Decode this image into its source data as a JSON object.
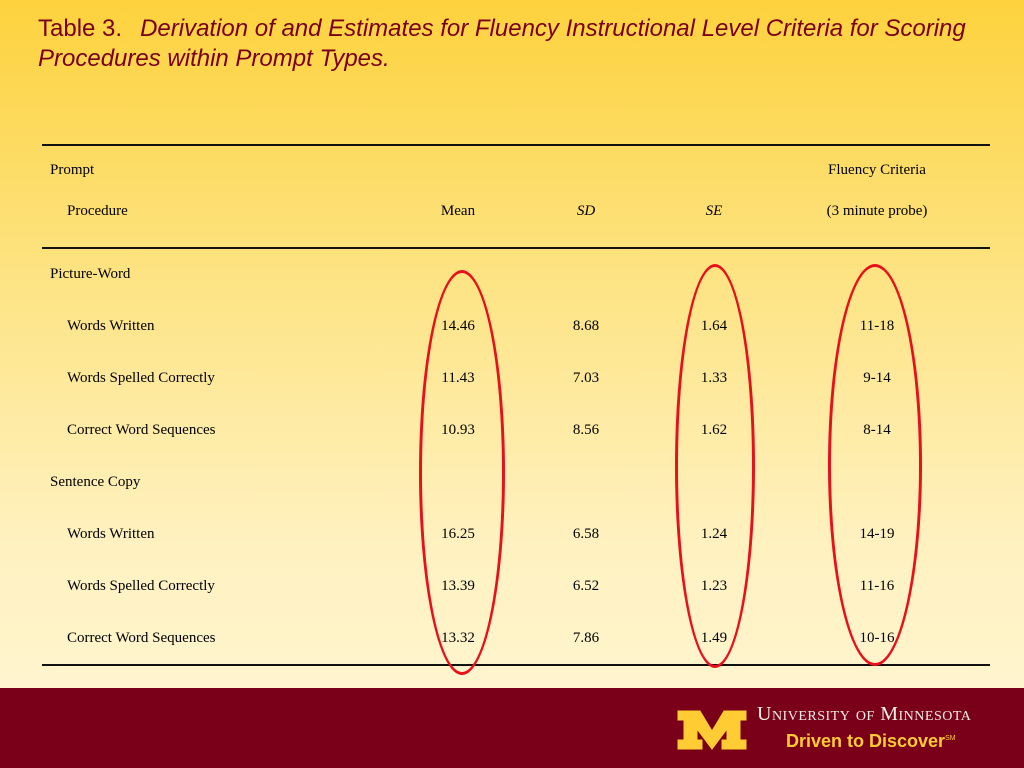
{
  "title": {
    "label": "Table 3.",
    "text": "Derivation of and Estimates for Fluency Instructional Level Criteria for Scoring Procedures within Prompt Types."
  },
  "headers": {
    "prompt": "Prompt",
    "procedure": "Procedure",
    "mean": "Mean",
    "sd": "SD",
    "se": "SE",
    "fluency_line1": "Fluency Criteria",
    "fluency_line2": "(3 minute probe)"
  },
  "groups": [
    {
      "name": "Picture-Word",
      "rows": [
        {
          "procedure": "Words Written",
          "mean": "14.46",
          "sd": "8.68",
          "se": "1.64",
          "criteria": "11-18"
        },
        {
          "procedure": "Words Spelled Correctly",
          "mean": "11.43",
          "sd": "7.03",
          "se": "1.33",
          "criteria": "9-14"
        },
        {
          "procedure": "Correct Word Sequences",
          "mean": "10.93",
          "sd": "8.56",
          "se": "1.62",
          "criteria": "8-14"
        }
      ]
    },
    {
      "name": "Sentence Copy",
      "rows": [
        {
          "procedure": "Words Written",
          "mean": "16.25",
          "sd": "6.58",
          "se": "1.24",
          "criteria": "14-19"
        },
        {
          "procedure": "Words Spelled Correctly",
          "mean": "13.39",
          "sd": "6.52",
          "se": "1.23",
          "criteria": "11-16"
        },
        {
          "procedure": "Correct Word Sequences",
          "mean": "13.32",
          "sd": "7.86",
          "se": "1.49",
          "criteria": "10-16"
        }
      ]
    }
  ],
  "footer": {
    "university": "University of Minnesota",
    "tagline": "Driven to Discover",
    "tagline_mark": "SM"
  },
  "colors": {
    "maroon": "#7a0019",
    "gold": "#ffcc33",
    "highlight_oval": "#e8111b"
  }
}
